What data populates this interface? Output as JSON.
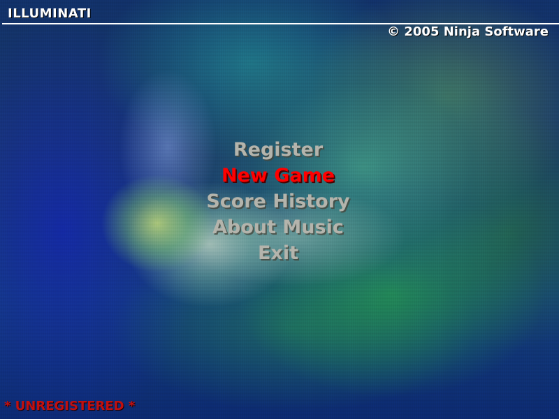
{
  "app": {
    "title": "ILLUMINATI",
    "copyright": "© 2005 Ninja Software"
  },
  "menu": {
    "selected_index": 1,
    "selected_color": "#ff0000",
    "normal_color": "#b4b4ac",
    "items": [
      {
        "label": "Register"
      },
      {
        "label": "New Game"
      },
      {
        "label": "Score History"
      },
      {
        "label": "About Music"
      },
      {
        "label": "Exit"
      }
    ]
  },
  "status": {
    "registration": "* UNREGISTERED *",
    "registration_color": "#c01010"
  }
}
